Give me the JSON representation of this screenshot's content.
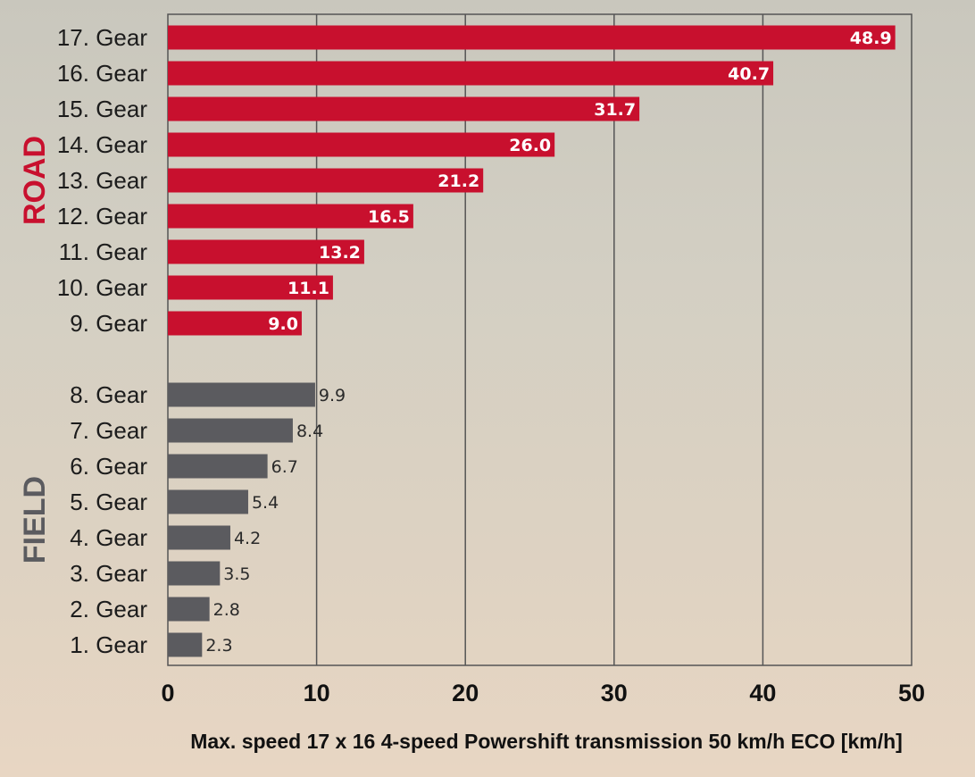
{
  "chart_data": {
    "type": "bar",
    "orientation": "horizontal",
    "xlabel": "Max. speed 17 x 16 4-speed Powershift transmission 50  km/h ECO [km/h]",
    "xlim": [
      0,
      50
    ],
    "xticks": [
      0,
      10,
      20,
      30,
      40,
      50
    ],
    "grid": true,
    "groups": [
      {
        "name": "ROAD",
        "color": "#c8102e",
        "label_position": "inside",
        "categories": [
          "17. Gear",
          "16. Gear",
          "15. Gear",
          "14. Gear",
          "13. Gear",
          "12. Gear",
          "11. Gear",
          "10. Gear",
          "9. Gear"
        ],
        "values": [
          48.9,
          40.7,
          31.7,
          26.0,
          21.2,
          16.5,
          13.2,
          11.1,
          9.0
        ],
        "labels": [
          "48.9",
          "40.7",
          "31.7",
          "26.0",
          "21.2",
          "16.5",
          "13.2",
          "11.1",
          "9.0"
        ]
      },
      {
        "name": "FIELD",
        "color": "#5b5b5f",
        "label_position": "outside",
        "categories": [
          "8. Gear",
          "7. Gear",
          "6. Gear",
          "5. Gear",
          "4. Gear",
          "3. Gear",
          "2. Gear",
          "1. Gear"
        ],
        "values": [
          9.9,
          8.4,
          6.7,
          5.4,
          4.2,
          3.5,
          2.8,
          2.3
        ],
        "labels": [
          "9.9",
          "8.4",
          "6.7",
          "5.4",
          "4.2",
          "3.5",
          "2.8",
          "2.3"
        ]
      }
    ]
  }
}
